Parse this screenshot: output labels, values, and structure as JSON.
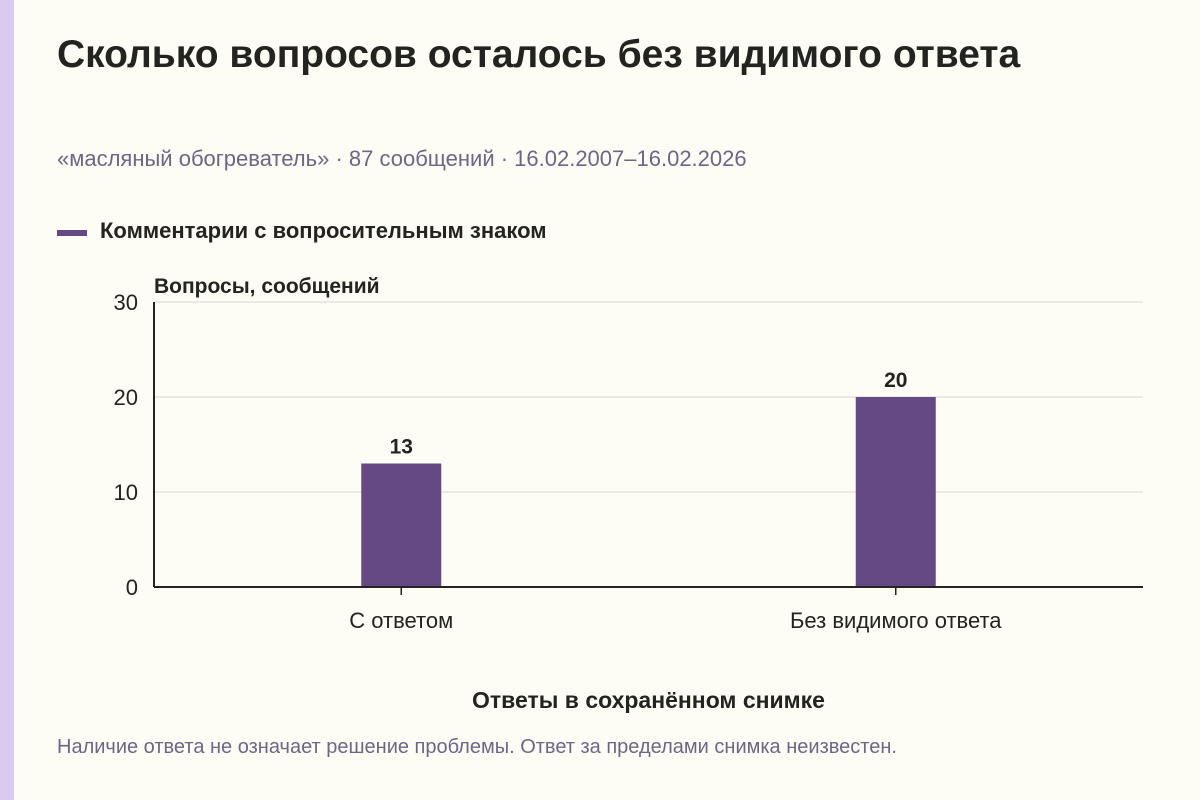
{
  "title": "Сколько вопросов осталось без видимого ответа",
  "subtitle": "«масляный обогреватель» · 87 сообщений · 16.02.2007–16.02.2026",
  "footnote": "Наличие ответа не означает решение проблемы. Ответ за пределами снимка неизвестен.",
  "colors": {
    "bar": "#654985",
    "accent": "#d9cbef",
    "background": "#fdfcf5"
  },
  "chart_data": {
    "type": "bar",
    "categories": [
      "С ответом",
      "Без видимого ответа"
    ],
    "series": [
      {
        "name": "Комментарии с вопросительным знаком",
        "values": [
          13,
          20
        ]
      }
    ],
    "xlabel": "Ответы в сохранённом снимке",
    "ylabel": "Вопросы, сообщений",
    "ylim": [
      0,
      30
    ],
    "yticks": [
      0,
      10,
      20,
      30
    ],
    "grid": true,
    "legend": "top-left"
  }
}
